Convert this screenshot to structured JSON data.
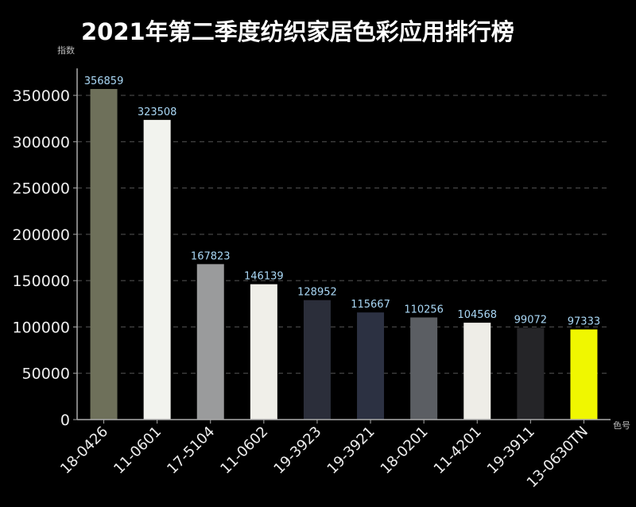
{
  "chart_data": {
    "type": "bar",
    "title": "2021年第二季度纺织家居色彩应用排行榜",
    "xlabel": "色号",
    "ylabel": "指数",
    "ylim": [
      0,
      350000
    ],
    "yticks": [
      0,
      50000,
      100000,
      150000,
      200000,
      250000,
      300000,
      350000
    ],
    "grid": "horizontal dashed",
    "categories": [
      "18-0426",
      "11-0601",
      "17-5104",
      "11-0602",
      "19-3923",
      "19-3921",
      "18-0201",
      "11-4201",
      "19-3911",
      "13-0630TN"
    ],
    "values": [
      356859,
      323508,
      167823,
      146139,
      128952,
      115667,
      110256,
      104568,
      99072,
      97333
    ],
    "bar_colors": [
      "#6e705a",
      "#f2f3ee",
      "#9a9b9c",
      "#f0efe9",
      "#2b2e3a",
      "#2c3142",
      "#5b5e63",
      "#eeede7",
      "#252528",
      "#f0f700"
    ]
  }
}
